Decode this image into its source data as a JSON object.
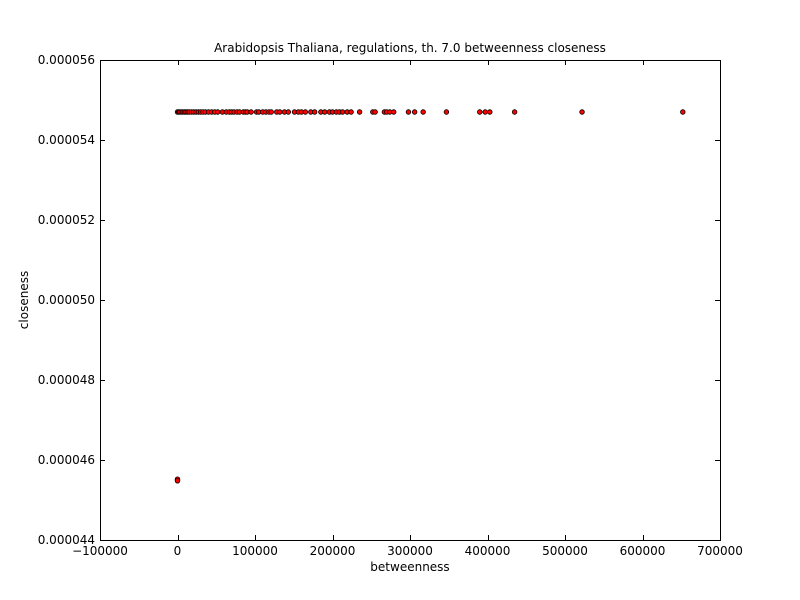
{
  "chart_data": {
    "type": "scatter",
    "title": "Arabidopsis Thaliana, regulations, th. 7.0 betweenness closeness",
    "xlabel": "betweenness",
    "ylabel": "closeness",
    "xlim": [
      -100000,
      700000
    ],
    "ylim": [
      4.4e-05,
      5.6e-05
    ],
    "xticks": [
      -100000,
      0,
      100000,
      200000,
      300000,
      400000,
      500000,
      600000,
      700000
    ],
    "xtick_labels": [
      "−100000",
      "0",
      "100000",
      "200000",
      "300000",
      "400000",
      "500000",
      "600000",
      "700000"
    ],
    "yticks": [
      4.4e-05,
      4.6e-05,
      4.8e-05,
      5e-05,
      5.2e-05,
      5.4e-05,
      5.6e-05
    ],
    "ytick_labels": [
      "0.000044",
      "0.000046",
      "0.000048",
      "0.000050",
      "0.000052",
      "0.000054",
      "0.000056"
    ],
    "grid": false,
    "marker_color": "#ff0000",
    "marker_edge_color": "#000000",
    "series": [
      {
        "points": [
          {
            "x": 0,
            "y": 4.55e-05
          },
          {
            "x": 0,
            "y": 4.552e-05
          },
          {
            "x": 0,
            "y": 4.548e-05
          },
          {
            "x": 0,
            "y": 5.47e-05
          },
          {
            "x": 1500,
            "y": 5.47e-05
          },
          {
            "x": 3000,
            "y": 5.47e-05
          },
          {
            "x": 5000,
            "y": 5.47e-05
          },
          {
            "x": 7000,
            "y": 5.47e-05
          },
          {
            "x": 9000,
            "y": 5.47e-05
          },
          {
            "x": 11000,
            "y": 5.47e-05
          },
          {
            "x": 13000,
            "y": 5.47e-05
          },
          {
            "x": 15000,
            "y": 5.47e-05
          },
          {
            "x": 18000,
            "y": 5.47e-05
          },
          {
            "x": 21000,
            "y": 5.47e-05
          },
          {
            "x": 24000,
            "y": 5.47e-05
          },
          {
            "x": 27000,
            "y": 5.47e-05
          },
          {
            "x": 30000,
            "y": 5.47e-05
          },
          {
            "x": 33000,
            "y": 5.47e-05
          },
          {
            "x": 36000,
            "y": 5.47e-05
          },
          {
            "x": 40000,
            "y": 5.47e-05
          },
          {
            "x": 44000,
            "y": 5.47e-05
          },
          {
            "x": 48000,
            "y": 5.47e-05
          },
          {
            "x": 52000,
            "y": 5.47e-05
          },
          {
            "x": 58000,
            "y": 5.47e-05
          },
          {
            "x": 63000,
            "y": 5.47e-05
          },
          {
            "x": 67000,
            "y": 5.47e-05
          },
          {
            "x": 70000,
            "y": 5.47e-05
          },
          {
            "x": 73000,
            "y": 5.47e-05
          },
          {
            "x": 77000,
            "y": 5.47e-05
          },
          {
            "x": 80000,
            "y": 5.47e-05
          },
          {
            "x": 85000,
            "y": 5.47e-05
          },
          {
            "x": 88000,
            "y": 5.47e-05
          },
          {
            "x": 90000,
            "y": 5.47e-05
          },
          {
            "x": 95000,
            "y": 5.47e-05
          },
          {
            "x": 102000,
            "y": 5.47e-05
          },
          {
            "x": 105000,
            "y": 5.47e-05
          },
          {
            "x": 110000,
            "y": 5.47e-05
          },
          {
            "x": 114000,
            "y": 5.47e-05
          },
          {
            "x": 118000,
            "y": 5.47e-05
          },
          {
            "x": 121000,
            "y": 5.47e-05
          },
          {
            "x": 128000,
            "y": 5.47e-05
          },
          {
            "x": 132000,
            "y": 5.47e-05
          },
          {
            "x": 138000,
            "y": 5.47e-05
          },
          {
            "x": 143000,
            "y": 5.47e-05
          },
          {
            "x": 151000,
            "y": 5.47e-05
          },
          {
            "x": 156000,
            "y": 5.47e-05
          },
          {
            "x": 160000,
            "y": 5.47e-05
          },
          {
            "x": 165000,
            "y": 5.47e-05
          },
          {
            "x": 172000,
            "y": 5.47e-05
          },
          {
            "x": 177000,
            "y": 5.47e-05
          },
          {
            "x": 185000,
            "y": 5.47e-05
          },
          {
            "x": 190000,
            "y": 5.47e-05
          },
          {
            "x": 196000,
            "y": 5.47e-05
          },
          {
            "x": 200000,
            "y": 5.47e-05
          },
          {
            "x": 205000,
            "y": 5.47e-05
          },
          {
            "x": 209000,
            "y": 5.47e-05
          },
          {
            "x": 213000,
            "y": 5.47e-05
          },
          {
            "x": 219000,
            "y": 5.47e-05
          },
          {
            "x": 224000,
            "y": 5.47e-05
          },
          {
            "x": 235000,
            "y": 5.47e-05
          },
          {
            "x": 252000,
            "y": 5.47e-05
          },
          {
            "x": 255000,
            "y": 5.47e-05
          },
          {
            "x": 267000,
            "y": 5.47e-05
          },
          {
            "x": 270000,
            "y": 5.47e-05
          },
          {
            "x": 274000,
            "y": 5.47e-05
          },
          {
            "x": 279000,
            "y": 5.47e-05
          },
          {
            "x": 298000,
            "y": 5.47e-05
          },
          {
            "x": 306000,
            "y": 5.47e-05
          },
          {
            "x": 317000,
            "y": 5.47e-05
          },
          {
            "x": 347000,
            "y": 5.47e-05
          },
          {
            "x": 390000,
            "y": 5.47e-05
          },
          {
            "x": 397000,
            "y": 5.47e-05
          },
          {
            "x": 403000,
            "y": 5.47e-05
          },
          {
            "x": 435000,
            "y": 5.47e-05
          },
          {
            "x": 522000,
            "y": 5.47e-05
          },
          {
            "x": 652000,
            "y": 5.47e-05
          }
        ]
      }
    ]
  }
}
